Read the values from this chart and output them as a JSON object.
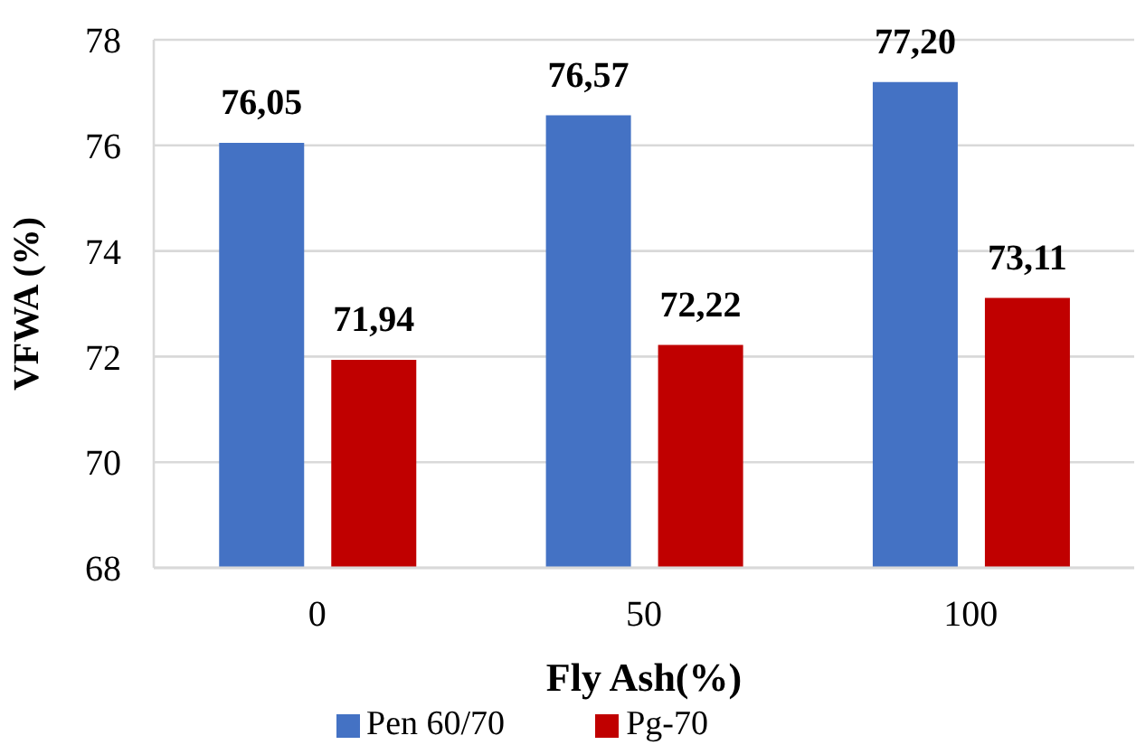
{
  "chart_data": {
    "type": "bar",
    "xlabel": "Fly Ash(%)",
    "ylabel": "VFWA (%)",
    "categories": [
      "0",
      "50",
      "100"
    ],
    "series": [
      {
        "name": "Pen 60/70",
        "color": "#4472c4",
        "values": [
          76.05,
          76.57,
          77.2
        ],
        "value_labels": [
          "76,05",
          "76,57",
          "77,20"
        ]
      },
      {
        "name": "Pg-70",
        "color": "#c00000",
        "values": [
          71.94,
          72.22,
          73.11
        ],
        "value_labels": [
          "71,94",
          "72,22",
          "73,11"
        ]
      }
    ],
    "ylim": [
      68,
      78
    ],
    "yticks": [
      68,
      70,
      72,
      74,
      76,
      78
    ],
    "grid": "y",
    "legend": "bottom"
  }
}
